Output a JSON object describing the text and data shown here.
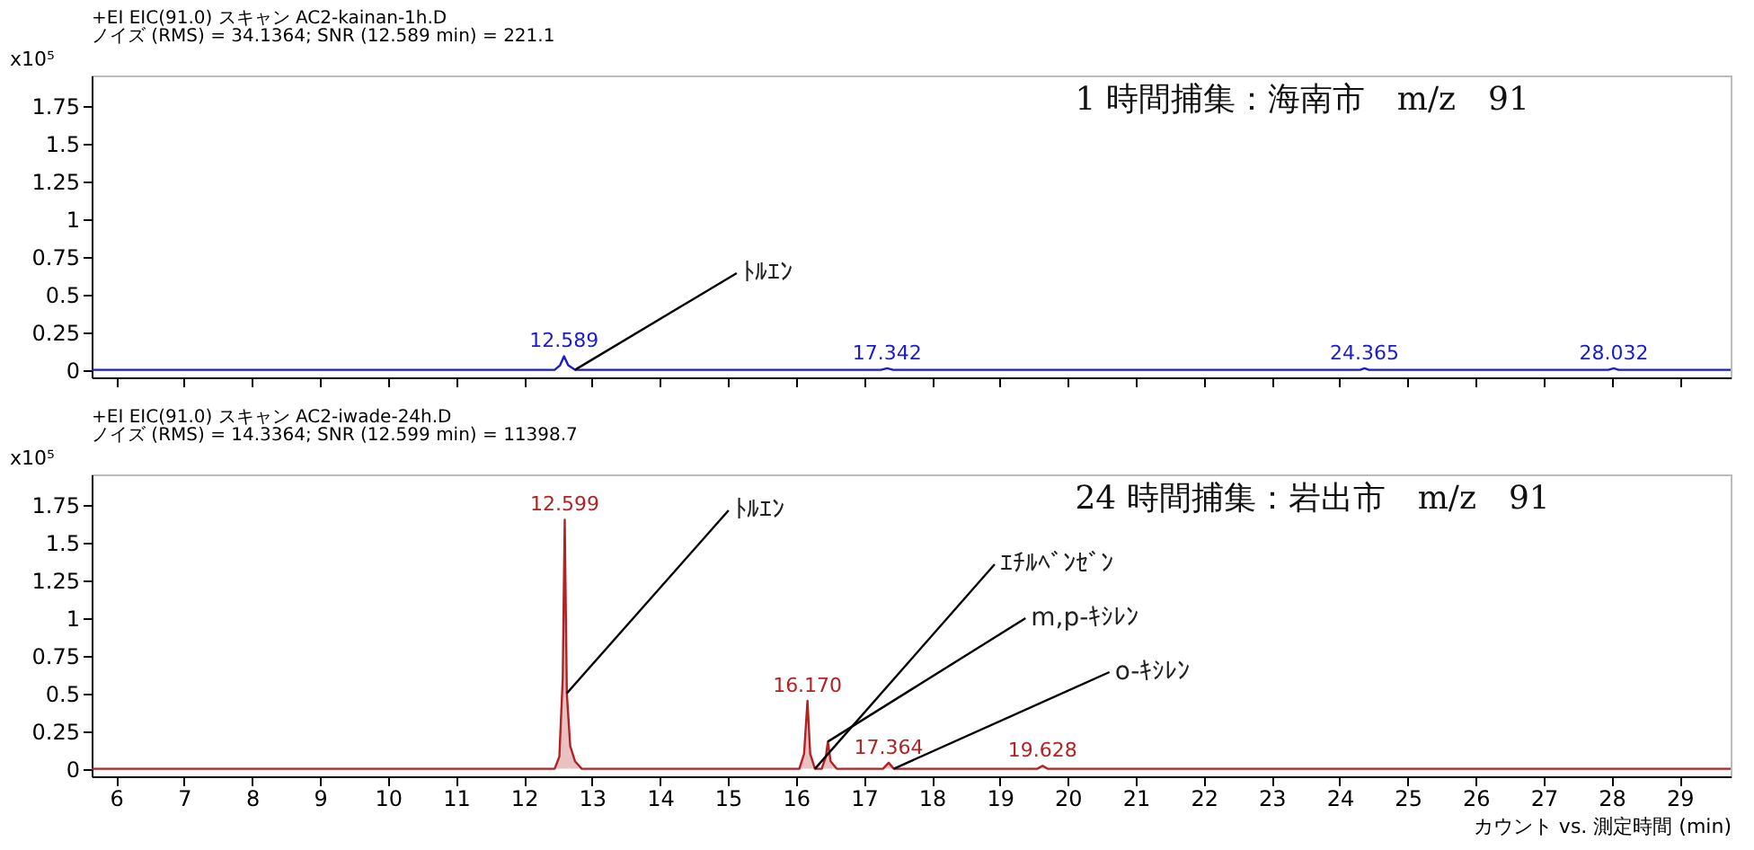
{
  "chart_data": [
    {
      "type": "line",
      "title": "+EI EIC(91.0) スキャン AC2-kainan-1h.D",
      "subtitle": "ノイズ (RMS) = 34.1364; SNR (12.589 min) = 221.1",
      "ylabel": "x10⁵",
      "x": [
        5.64,
        12.45,
        12.53,
        12.589,
        12.65,
        12.75,
        17.25,
        17.342,
        17.43,
        24.3,
        24.365,
        24.43,
        27.95,
        28.032,
        28.1,
        29.75
      ],
      "series": [
        {
          "color": "#1a1ad0",
          "values": [
            0,
            0,
            0.03,
            0.09,
            0.03,
            0,
            0,
            0.01,
            0,
            0,
            0.01,
            0,
            0,
            0.01,
            0,
            0
          ]
        }
      ],
      "xlim": [
        5.64,
        29.75
      ],
      "xticks": [
        6,
        7,
        8,
        9,
        10,
        11,
        12,
        13,
        14,
        15,
        16,
        17,
        18,
        19,
        20,
        21,
        22,
        23,
        24,
        25,
        26,
        27,
        28,
        29
      ],
      "ylim": [
        -0.05,
        1.95
      ],
      "yticks": [
        0,
        0.25,
        0.5,
        0.75,
        1,
        1.25,
        1.5,
        1.75
      ],
      "tick_labels": "y",
      "annotations": [
        "1 時間捕集：海南市　m/z　91",
        {
          "text": "12.589",
          "x": 12.589,
          "y": 0.09
        },
        {
          "text": "17.342",
          "x": 17.342,
          "y": 0.01
        },
        {
          "text": "24.365",
          "x": 24.365,
          "y": 0.01
        },
        {
          "text": "28.032",
          "x": 28.032,
          "y": 0.01
        },
        {
          "text": "ﾄﾙｴﾝ",
          "x": 12.75,
          "y": 0
        }
      ]
    },
    {
      "type": "area",
      "title": "+EI EIC(91.0) スキャン AC2-iwade-24h.D",
      "subtitle": "ノイズ (RMS) = 14.3364; SNR (12.599 min) = 11398.7",
      "ylabel": "x10⁵",
      "xlabel": "カウント vs. 測定時間 (min)",
      "x": [
        5.64,
        12.45,
        12.52,
        12.57,
        12.599,
        12.63,
        12.68,
        12.75,
        12.85,
        16.05,
        16.12,
        16.17,
        16.21,
        16.28,
        16.38,
        16.44,
        16.47,
        16.51,
        16.6,
        17.28,
        17.364,
        17.44,
        19.55,
        19.628,
        19.7,
        29.75
      ],
      "series": [
        {
          "color": "#b22222",
          "values": [
            0,
            0,
            0.08,
            0.6,
            1.65,
            0.5,
            0.15,
            0.05,
            0,
            0,
            0.1,
            0.45,
            0.1,
            0,
            0,
            0.08,
            0.18,
            0.05,
            0,
            0,
            0.04,
            0,
            0,
            0.02,
            0,
            0
          ]
        }
      ],
      "xlim": [
        5.64,
        29.75
      ],
      "xticks": [
        6,
        7,
        8,
        9,
        10,
        11,
        12,
        13,
        14,
        15,
        16,
        17,
        18,
        19,
        20,
        21,
        22,
        23,
        24,
        25,
        26,
        27,
        28,
        29
      ],
      "ylim": [
        -0.05,
        1.95
      ],
      "yticks": [
        0,
        0.25,
        0.5,
        0.75,
        1,
        1.25,
        1.5,
        1.75
      ],
      "annotations": [
        "24 時間捕集：岩出市　m/z　91",
        {
          "text": "12.599",
          "x": 12.599,
          "y": 1.65
        },
        {
          "text": "16.170",
          "x": 16.17,
          "y": 0.45
        },
        {
          "text": "17.364",
          "x": 17.364,
          "y": 0.04
        },
        {
          "text": "19.628",
          "x": 19.628,
          "y": 0.02
        },
        {
          "text": "ﾄﾙｴﾝ",
          "x": 12.63,
          "y": 0.5
        },
        {
          "text": "ｴﾁﾙﾍﾞﾝｾﾞﾝ",
          "x": 16.28,
          "y": 0
        },
        {
          "text": "m,p-ｷｼﾚﾝ",
          "x": 16.47,
          "y": 0.18
        },
        {
          "text": "o-ｷｼﾚﾝ",
          "x": 17.44,
          "y": 0
        }
      ]
    }
  ]
}
